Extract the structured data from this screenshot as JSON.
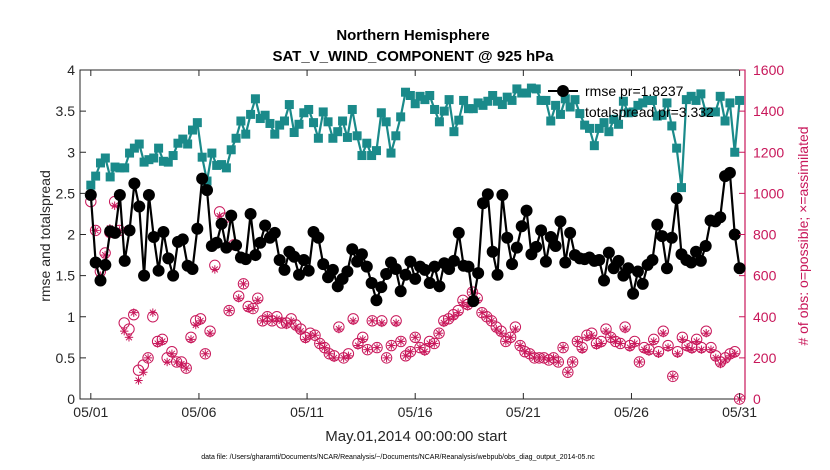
{
  "chart_data": {
    "type": "line",
    "title": "Northern Hemisphere",
    "subtitle": "SAT_V_WIND_COMPONENT @ 925 hPa",
    "xlabel": "May.01,2014 00:00:00 start",
    "ylabel_left": "rmse and totalspread",
    "ylabel_right": "# of obs: o=possible; ×=assimilated",
    "footnote": "data file: /Users/gharamti/Documents/NCAR/Reanalysis/~/Documents/NCAR/Reanalysis/webpub/obs_diag_output_2014-05.nc",
    "xlim": [
      0.5,
      31.25
    ],
    "ylim_left": [
      0,
      4
    ],
    "ylim_right": [
      0,
      1600
    ],
    "x_ticks": [
      1,
      6,
      11,
      16,
      21,
      26,
      31
    ],
    "x_tick_labels": [
      "05/01",
      "05/06",
      "05/11",
      "05/16",
      "05/21",
      "05/26",
      "05/31"
    ],
    "y_ticks_left": [
      "0",
      "0.5",
      "1",
      "1.5",
      "2",
      "2.5",
      "3",
      "3.5",
      "4"
    ],
    "y_ticks_right": [
      "0",
      "200",
      "400",
      "600",
      "800",
      "1000",
      "1200",
      "1400",
      "1600"
    ],
    "grid": false,
    "legend_placement": "top-right",
    "colors": {
      "rmse": "#000000",
      "totalspread": "#1a8a8a",
      "obs": "#c8175a",
      "axis_right": "#c8175a"
    },
    "series": [
      {
        "name": "rmse pr=1.8237",
        "axis": "left",
        "values": [
          2.48,
          1.66,
          1.44,
          1.63,
          2.04,
          2.02,
          2.48,
          1.68,
          2.05,
          2.62,
          2.34,
          1.5,
          2.48,
          1.97,
          1.56,
          2.03,
          1.71,
          1.5,
          1.91,
          1.94,
          1.62,
          1.58,
          2.07,
          2.68,
          2.54,
          1.86,
          1.9,
          2.13,
          1.84,
          2.23,
          1.87,
          1.72,
          1.7,
          2.25,
          1.75,
          1.9,
          2.11,
          1.96,
          2.02,
          1.69,
          1.57,
          1.79,
          1.73,
          1.51,
          1.69,
          1.56,
          2.03,
          1.96,
          1.64,
          1.48,
          1.57,
          1.37,
          1.46,
          1.55,
          1.82,
          1.67,
          1.76,
          1.61,
          1.41,
          1.2,
          1.36,
          1.52,
          1.66,
          1.58,
          1.31,
          1.51,
          1.67,
          1.46,
          1.61,
          1.57,
          1.41,
          1.61,
          1.37,
          1.65,
          1.58,
          1.68,
          2.02,
          1.62,
          1.61,
          1.19,
          1.53,
          2.38,
          2.49,
          1.79,
          1.51,
          2.48,
          1.96,
          1.64,
          1.84,
          2.1,
          2.29,
          1.76,
          1.85,
          2.05,
          1.67,
          1.97,
          1.86,
          2.16,
          1.66,
          2.02,
          1.75,
          1.71,
          1.7,
          1.72,
          1.68,
          1.69,
          1.44,
          1.78,
          1.59,
          1.68,
          1.5,
          1.59,
          1.28,
          1.55,
          1.4,
          1.63,
          1.69,
          2.12,
          1.98,
          1.59,
          1.96,
          2.44,
          1.76,
          1.69,
          1.66,
          1.79,
          1.68,
          1.86,
          2.17,
          2.16,
          2.21,
          2.71,
          2.75,
          2.0,
          1.59
        ]
      },
      {
        "name": "totalspread pr=3.332",
        "axis": "left",
        "values": [
          2.6,
          2.71,
          2.87,
          2.93,
          2.7,
          2.82,
          2.81,
          2.81,
          2.99,
          3.05,
          3.1,
          2.88,
          2.91,
          2.93,
          3.05,
          2.89,
          2.88,
          2.96,
          3.11,
          3.16,
          3.1,
          3.27,
          3.36,
          2.94,
          2.65,
          2.99,
          2.84,
          2.85,
          2.81,
          3.03,
          3.17,
          3.38,
          3.22,
          3.46,
          3.65,
          3.41,
          3.45,
          3.35,
          3.22,
          3.33,
          3.38,
          3.58,
          3.24,
          3.34,
          3.48,
          3.52,
          3.36,
          3.17,
          3.49,
          3.37,
          3.17,
          3.25,
          3.38,
          3.18,
          3.52,
          3.2,
          2.96,
          3.11,
          2.96,
          3.02,
          3.48,
          3.37,
          2.99,
          3.2,
          3.43,
          3.73,
          3.69,
          3.59,
          3.68,
          3.64,
          3.69,
          3.52,
          3.37,
          3.5,
          3.64,
          3.25,
          3.39,
          3.63,
          3.53,
          3.53,
          3.6,
          3.57,
          3.62,
          3.69,
          3.62,
          3.58,
          3.67,
          3.63,
          3.77,
          3.72,
          3.72,
          3.78,
          3.77,
          3.63,
          3.63,
          3.38,
          3.57,
          3.46,
          3.65,
          3.55,
          3.64,
          3.47,
          3.33,
          3.29,
          3.08,
          3.29,
          3.36,
          3.25,
          3.4,
          3.34,
          3.62,
          3.48,
          3.49,
          3.57,
          3.6,
          3.63,
          3.63,
          3.44,
          3.45,
          3.6,
          3.32,
          3.05,
          2.57,
          3.64,
          3.68,
          3.63,
          3.71,
          3.49,
          3.49,
          3.49,
          3.68,
          3.38,
          3.6,
          3.0,
          3.63
        ]
      },
      {
        "name": "obs possible",
        "axis": "right",
        "values": [
          960,
          820,
          620,
          710,
          810,
          960,
          820,
          370,
          340,
          410,
          140,
          165,
          200,
          400,
          280,
          290,
          200,
          230,
          180,
          180,
          150,
          300,
          380,
          390,
          220,
          330,
          650,
          910,
          880,
          430,
          750,
          500,
          560,
          450,
          440,
          490,
          380,
          400,
          380,
          400,
          370,
          370,
          390,
          360,
          340,
          300,
          320,
          310,
          270,
          250,
          220,
          210,
          350,
          200,
          220,
          390,
          270,
          300,
          240,
          380,
          250,
          380,
          200,
          260,
          380,
          280,
          210,
          230,
          300,
          250,
          240,
          280,
          270,
          320,
          380,
          390,
          410,
          430,
          480,
          460,
          520,
          490,
          420,
          400,
          380,
          350,
          330,
          280,
          300,
          350,
          260,
          230,
          220,
          200,
          200,
          200,
          190,
          200,
          180,
          250,
          130,
          180,
          280,
          250,
          310,
          320,
          270,
          280,
          340,
          300,
          280,
          270,
          350,
          260,
          280,
          180,
          250,
          240,
          290,
          230,
          330,
          260,
          110,
          230,
          300,
          260,
          250,
          290,
          250,
          330,
          250,
          210,
          180,
          200,
          220,
          230,
          0
        ]
      },
      {
        "name": "obs assimilated",
        "axis": "right",
        "values": [
          990,
          820,
          600,
          700,
          830,
          940,
          820,
          330,
          300,
          420,
          90,
          130,
          200,
          420,
          270,
          280,
          180,
          220,
          180,
          170,
          150,
          290,
          360,
          380,
          220,
          320,
          630,
          890,
          860,
          430,
          750,
          490,
          560,
          440,
          440,
          480,
          380,
          400,
          380,
          390,
          380,
          360,
          380,
          350,
          330,
          290,
          310,
          310,
          270,
          250,
          220,
          200,
          340,
          200,
          210,
          380,
          260,
          290,
          240,
          380,
          250,
          370,
          200,
          260,
          370,
          280,
          210,
          230,
          300,
          250,
          230,
          270,
          270,
          320,
          370,
          390,
          400,
          420,
          470,
          450,
          520,
          480,
          420,
          400,
          380,
          340,
          320,
          280,
          300,
          340,
          260,
          230,
          220,
          200,
          200,
          200,
          190,
          200,
          180,
          250,
          130,
          180,
          280,
          240,
          300,
          310,
          260,
          270,
          330,
          300,
          280,
          270,
          340,
          250,
          270,
          180,
          240,
          230,
          280,
          220,
          320,
          250,
          110,
          220,
          290,
          250,
          240,
          280,
          240,
          320,
          240,
          200,
          170,
          190,
          210,
          220,
          0
        ]
      }
    ]
  }
}
